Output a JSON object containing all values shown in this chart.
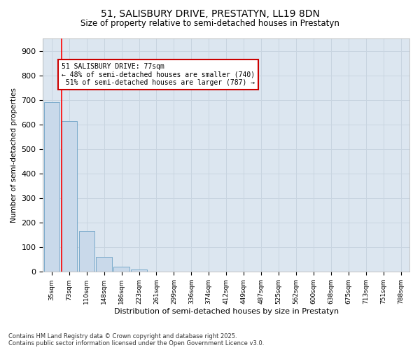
{
  "title_line1": "51, SALISBURY DRIVE, PRESTATYN, LL19 8DN",
  "title_line2": "Size of property relative to semi-detached houses in Prestatyn",
  "xlabel": "Distribution of semi-detached houses by size in Prestatyn",
  "ylabel": "Number of semi-detached properties",
  "categories": [
    "35sqm",
    "73sqm",
    "110sqm",
    "148sqm",
    "186sqm",
    "223sqm",
    "261sqm",
    "299sqm",
    "336sqm",
    "374sqm",
    "412sqm",
    "449sqm",
    "487sqm",
    "525sqm",
    "562sqm",
    "600sqm",
    "638sqm",
    "675sqm",
    "713sqm",
    "751sqm",
    "788sqm"
  ],
  "values": [
    690,
    615,
    165,
    60,
    20,
    10,
    0,
    0,
    0,
    0,
    0,
    0,
    0,
    0,
    0,
    0,
    0,
    0,
    0,
    0,
    0
  ],
  "bar_color": "#c9d9ea",
  "bar_edge_color": "#7aaaca",
  "property_sqm": 77,
  "pct_smaller": 48,
  "count_smaller": 740,
  "pct_larger": 51,
  "count_larger": 787,
  "annotation_box_color": "#ffffff",
  "annotation_box_edge": "#cc0000",
  "ylim": [
    0,
    950
  ],
  "yticks": [
    0,
    100,
    200,
    300,
    400,
    500,
    600,
    700,
    800,
    900
  ],
  "grid_color": "#c8d4e0",
  "bg_color": "#dce6f0",
  "fig_color": "#ffffff",
  "footnote": "Contains HM Land Registry data © Crown copyright and database right 2025.\nContains public sector information licensed under the Open Government Licence v3.0."
}
